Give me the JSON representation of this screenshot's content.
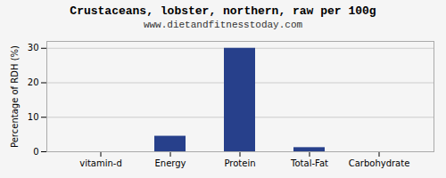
{
  "chart_data": {
    "type": "bar",
    "title": "Crustaceans, lobster, northern, raw per 100g",
    "subtitle": "www.dietandfitnesstoday.com",
    "categories": [
      "vitamin-d",
      "Energy",
      "Protein",
      "Total-Fat",
      "Carbohydrate"
    ],
    "values": [
      0,
      4.5,
      30,
      1.2,
      0
    ],
    "color": "#27408B",
    "ylabel": "Percentage of RDH (%)",
    "ylim": [
      0,
      32
    ],
    "yticks": [
      0,
      10,
      20,
      30
    ],
    "grid": true
  }
}
